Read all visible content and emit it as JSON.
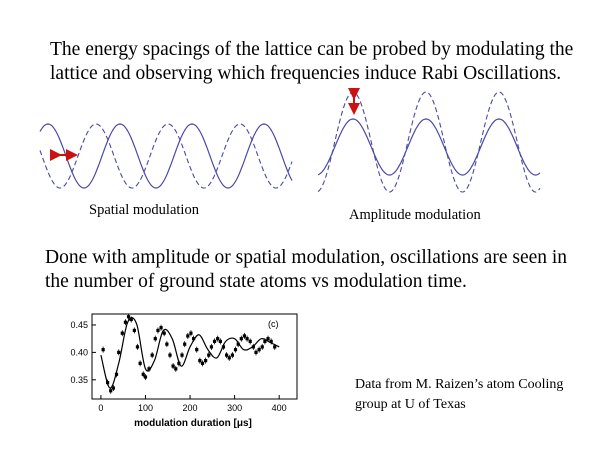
{
  "intro_text": "The energy spacings of the lattice can be probed by modulating the lattice and observing which frequencies induce Rabi Oscillations.",
  "captions": {
    "spatial": "Spatial modulation",
    "amplitude": "Amplitude modulation"
  },
  "result_text": "Done with amplitude or spatial modulation, oscillations are seen in the number of ground state atoms vs modulation time.",
  "credit": "Data from M. Raizen’s atom Cooling group at U of Texas",
  "colors": {
    "solid_wave": "#4a4aa8",
    "dashed_wave": "#4a4aa8",
    "arrow": "#cc1111"
  },
  "chart_data": {
    "type": "scatter",
    "panel_label": "(c)",
    "xlabel": "modulation duration [μs]",
    "xlim": [
      -20,
      440
    ],
    "ylim": [
      0.315,
      0.47
    ],
    "xticks": [
      0,
      100,
      200,
      300,
      400
    ],
    "yticks": [
      0.35,
      0.4,
      0.45
    ],
    "ytick_labels": [
      "0.35",
      "0.40",
      "0.45"
    ],
    "x": [
      5,
      15,
      22,
      28,
      35,
      40,
      48,
      55,
      62,
      68,
      75,
      82,
      88,
      95,
      100,
      108,
      115,
      122,
      128,
      135,
      142,
      148,
      155,
      162,
      168,
      175,
      182,
      188,
      195,
      202,
      208,
      215,
      222,
      228,
      235,
      242,
      248,
      255,
      262,
      268,
      275,
      282,
      288,
      295,
      302,
      308,
      315,
      322,
      328,
      335,
      342,
      348,
      355,
      362,
      368,
      375,
      382,
      390
    ],
    "y": [
      0.405,
      0.345,
      0.33,
      0.335,
      0.36,
      0.4,
      0.435,
      0.455,
      0.465,
      0.46,
      0.44,
      0.41,
      0.38,
      0.36,
      0.355,
      0.37,
      0.395,
      0.425,
      0.44,
      0.445,
      0.435,
      0.415,
      0.395,
      0.375,
      0.37,
      0.38,
      0.395,
      0.415,
      0.43,
      0.435,
      0.425,
      0.405,
      0.385,
      0.38,
      0.385,
      0.395,
      0.41,
      0.42,
      0.425,
      0.42,
      0.41,
      0.395,
      0.39,
      0.395,
      0.405,
      0.415,
      0.425,
      0.43,
      0.425,
      0.42,
      0.41,
      0.4,
      0.405,
      0.41,
      0.42,
      0.425,
      0.42,
      0.41
    ],
    "fit_x": [
      0,
      20,
      40,
      60,
      80,
      100,
      120,
      140,
      160,
      180,
      200,
      220,
      240,
      260,
      280,
      300,
      320,
      340,
      360,
      380,
      400
    ],
    "fit_y": [
      0.395,
      0.335,
      0.38,
      0.455,
      0.452,
      0.37,
      0.385,
      0.44,
      0.425,
      0.375,
      0.41,
      0.432,
      0.405,
      0.39,
      0.42,
      0.425,
      0.405,
      0.41,
      0.425,
      0.418,
      0.41
    ]
  }
}
